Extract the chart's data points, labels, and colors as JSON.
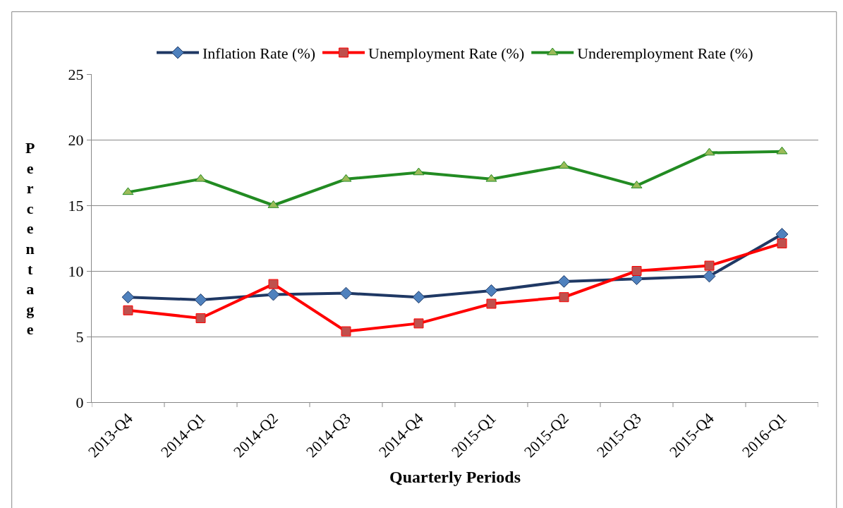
{
  "chart_data": {
    "type": "line",
    "xlabel": "Quarterly Periods",
    "ylabel": "Percentage",
    "categories": [
      "2013-Q4",
      "2014-Q1",
      "2014-Q2",
      "2014-Q3",
      "2014-Q4",
      "2015-Q1",
      "2015-Q2",
      "2015-Q3",
      "2015-Q4",
      "2016-Q1"
    ],
    "series": [
      {
        "name": "Inflation Rate (%)",
        "color": "#1f3864",
        "marker": "diamond",
        "values": [
          8.0,
          7.8,
          8.2,
          8.3,
          8.0,
          8.5,
          9.2,
          9.4,
          9.6,
          12.8
        ]
      },
      {
        "name": "Unemployment Rate (%)",
        "color": "#ff0000",
        "marker": "square",
        "values": [
          7.0,
          6.4,
          9.0,
          5.4,
          6.0,
          7.5,
          8.0,
          10.0,
          10.4,
          12.1
        ]
      },
      {
        "name": "Underemployment Rate (%)",
        "color": "#228b22",
        "marker": "triangle",
        "values": [
          16.0,
          17.0,
          15.0,
          17.0,
          17.5,
          17.0,
          18.0,
          16.5,
          19.0,
          19.1
        ]
      }
    ],
    "ylim": [
      0,
      25
    ],
    "yticks": [
      0,
      5,
      10,
      15,
      20,
      25
    ],
    "grid": "y",
    "legend": "top",
    "line_style": "solid"
  }
}
